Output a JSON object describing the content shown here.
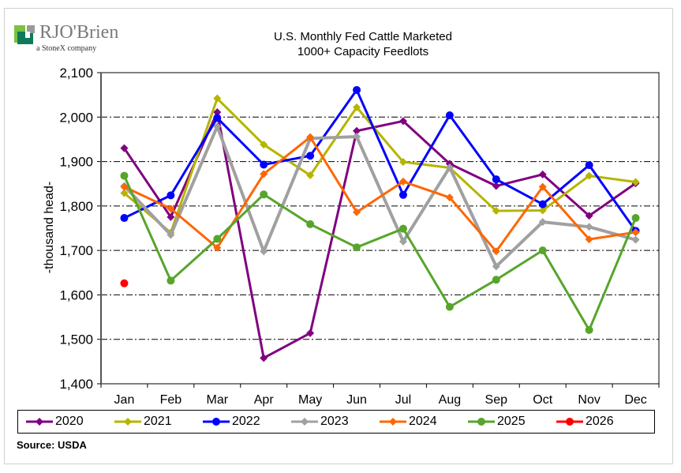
{
  "logo": {
    "brand_text": "RJO'Brien",
    "tagline": "a StoneX company",
    "colors": {
      "green_dark": "#0f7a5a",
      "green_light": "#7bc142",
      "gray": "#9a9a9a"
    }
  },
  "chart_data": {
    "type": "line",
    "title": "U.S. Monthly Fed Cattle Marketed",
    "subtitle": "1000+ Capacity Feedlots",
    "xlabel": "",
    "ylabel": "-thousand head-",
    "ylim": [
      1400,
      2100
    ],
    "yticks": [
      1400,
      1500,
      1600,
      1700,
      1800,
      1900,
      2000,
      2100
    ],
    "ytick_labels": [
      "1,400",
      "1,500",
      "1,600",
      "1,700",
      "1,800",
      "1,900",
      "2,000",
      "2,100"
    ],
    "grid": "horizontal dashed",
    "legend_position": "bottom",
    "categories": [
      "Jan",
      "Feb",
      "Mar",
      "Apr",
      "May",
      "Jun",
      "Jul",
      "Aug",
      "Sep",
      "Oct",
      "Nov",
      "Dec"
    ],
    "series": [
      {
        "name": "2020",
        "color": "#800080",
        "marker": "diamond",
        "values": [
          1930,
          1775,
          2011,
          1458,
          1514,
          1969,
          1991,
          1895,
          1845,
          1871,
          1778,
          1851
        ]
      },
      {
        "name": "2021",
        "color": "#b5b500",
        "marker": "diamond",
        "values": [
          1829,
          1740,
          2042,
          1938,
          1869,
          2022,
          1899,
          1886,
          1789,
          1790,
          1868,
          1854
        ]
      },
      {
        "name": "2022",
        "color": "#0000ff",
        "marker": "circle",
        "values": [
          1773,
          1824,
          1998,
          1893,
          1913,
          2061,
          1825,
          2004,
          1860,
          1804,
          1892,
          1744
        ]
      },
      {
        "name": "2023",
        "color": "#a0a0a0",
        "marker": "diamond",
        "values": [
          1845,
          1735,
          1979,
          1698,
          1952,
          1956,
          1720,
          1887,
          1664,
          1764,
          1753,
          1724
        ]
      },
      {
        "name": "2024",
        "color": "#ff6600",
        "marker": "diamond",
        "values": [
          1843,
          1794,
          1706,
          1872,
          1955,
          1786,
          1855,
          1819,
          1698,
          1843,
          1725,
          1741
        ]
      },
      {
        "name": "2025",
        "color": "#57a52b",
        "marker": "circle",
        "values": [
          1868,
          1632,
          1726,
          1826,
          1759,
          1707,
          1749,
          1573,
          1634,
          1700,
          1521,
          1773
        ]
      },
      {
        "name": "2026",
        "color": "#ff0000",
        "marker": "circle",
        "values": [
          1626,
          null,
          null,
          null,
          null,
          null,
          null,
          null,
          null,
          null,
          null,
          null
        ]
      }
    ]
  },
  "source": "Source: USDA"
}
